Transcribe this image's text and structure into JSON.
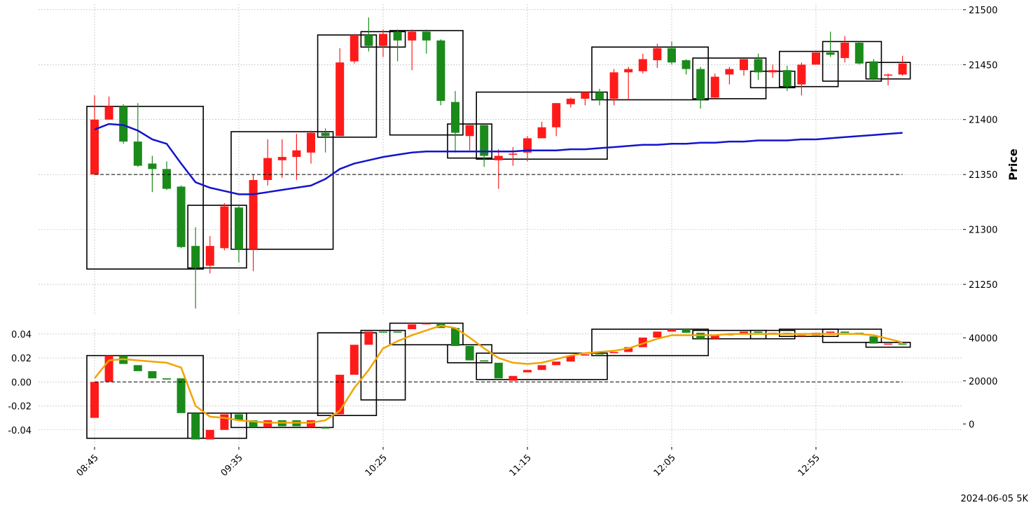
{
  "chart_data": {
    "type": "candlestick",
    "footer": "2024-06-05 5K",
    "colors": {
      "up": "#ff1a1a",
      "down": "#1a8a1a",
      "ma": "#1414cc",
      "indicator": "#f0a500",
      "box": "#000000",
      "grid": "#b0b0b0"
    },
    "x_ticks": [
      {
        "index": 0,
        "label": "08:45"
      },
      {
        "index": 10,
        "label": "09:35"
      },
      {
        "index": 20,
        "label": "10:25"
      },
      {
        "index": 30,
        "label": "11:15"
      },
      {
        "index": 40,
        "label": "12:05"
      },
      {
        "index": 50,
        "label": "12:55"
      }
    ],
    "price_panel": {
      "ylabel": "Price",
      "ylim": [
        21222,
        21505
      ],
      "yticks": [
        21250,
        21300,
        21350,
        21400,
        21450,
        21500
      ],
      "reference_level": 21350,
      "candles": [
        {
          "o": 21350,
          "h": 21422,
          "l": 21350,
          "c": 21400,
          "dir": "up"
        },
        {
          "o": 21400,
          "h": 21421,
          "l": 21400,
          "c": 21412,
          "dir": "up"
        },
        {
          "o": 21412,
          "h": 21414,
          "l": 21378,
          "c": 21380,
          "dir": "down"
        },
        {
          "o": 21380,
          "h": 21415,
          "l": 21357,
          "c": 21358,
          "dir": "down"
        },
        {
          "o": 21360,
          "h": 21367,
          "l": 21334,
          "c": 21355,
          "dir": "down"
        },
        {
          "o": 21355,
          "h": 21362,
          "l": 21336,
          "c": 21337,
          "dir": "down"
        },
        {
          "o": 21339,
          "h": 21340,
          "l": 21283,
          "c": 21284,
          "dir": "down"
        },
        {
          "o": 21285,
          "h": 21302,
          "l": 21228,
          "c": 21265,
          "dir": "down"
        },
        {
          "o": 21267,
          "h": 21294,
          "l": 21260,
          "c": 21285,
          "dir": "up"
        },
        {
          "o": 21283,
          "h": 21324,
          "l": 21281,
          "c": 21321,
          "dir": "up"
        },
        {
          "o": 21320,
          "h": 21322,
          "l": 21270,
          "c": 21282,
          "dir": "down"
        },
        {
          "o": 21282,
          "h": 21350,
          "l": 21262,
          "c": 21345,
          "dir": "up"
        },
        {
          "o": 21345,
          "h": 21382,
          "l": 21340,
          "c": 21365,
          "dir": "up"
        },
        {
          "o": 21363,
          "h": 21382,
          "l": 21347,
          "c": 21366,
          "dir": "up"
        },
        {
          "o": 21366,
          "h": 21387,
          "l": 21345,
          "c": 21372,
          "dir": "up"
        },
        {
          "o": 21370,
          "h": 21390,
          "l": 21360,
          "c": 21388,
          "dir": "up"
        },
        {
          "o": 21388,
          "h": 21392,
          "l": 21370,
          "c": 21385,
          "dir": "down"
        },
        {
          "o": 21385,
          "h": 21465,
          "l": 21385,
          "c": 21452,
          "dir": "up"
        },
        {
          "o": 21453,
          "h": 21478,
          "l": 21451,
          "c": 21477,
          "dir": "up"
        },
        {
          "o": 21477,
          "h": 21493,
          "l": 21462,
          "c": 21467,
          "dir": "down"
        },
        {
          "o": 21467,
          "h": 21482,
          "l": 21457,
          "c": 21478,
          "dir": "up"
        },
        {
          "o": 21480,
          "h": 21482,
          "l": 21453,
          "c": 21472,
          "dir": "down"
        },
        {
          "o": 21472,
          "h": 21482,
          "l": 21445,
          "c": 21480,
          "dir": "up"
        },
        {
          "o": 21480,
          "h": 21482,
          "l": 21460,
          "c": 21472,
          "dir": "down"
        },
        {
          "o": 21472,
          "h": 21473,
          "l": 21413,
          "c": 21417,
          "dir": "down"
        },
        {
          "o": 21416,
          "h": 21426,
          "l": 21370,
          "c": 21388,
          "dir": "down"
        },
        {
          "o": 21385,
          "h": 21395,
          "l": 21372,
          "c": 21395,
          "dir": "up"
        },
        {
          "o": 21395,
          "h": 21395,
          "l": 21357,
          "c": 21367,
          "dir": "down"
        },
        {
          "o": 21363,
          "h": 21373,
          "l": 21337,
          "c": 21367,
          "dir": "up"
        },
        {
          "o": 21368,
          "h": 21375,
          "l": 21358,
          "c": 21369,
          "dir": "up"
        },
        {
          "o": 21370,
          "h": 21385,
          "l": 21362,
          "c": 21383,
          "dir": "up"
        },
        {
          "o": 21383,
          "h": 21398,
          "l": 21383,
          "c": 21393,
          "dir": "up"
        },
        {
          "o": 21393,
          "h": 21415,
          "l": 21385,
          "c": 21415,
          "dir": "up"
        },
        {
          "o": 21414,
          "h": 21420,
          "l": 21411,
          "c": 21419,
          "dir": "up"
        },
        {
          "o": 21419,
          "h": 21425,
          "l": 21413,
          "c": 21425,
          "dir": "up"
        },
        {
          "o": 21425,
          "h": 21428,
          "l": 21413,
          "c": 21418,
          "dir": "down"
        },
        {
          "o": 21419,
          "h": 21446,
          "l": 21413,
          "c": 21443,
          "dir": "up"
        },
        {
          "o": 21443,
          "h": 21448,
          "l": 21418,
          "c": 21446,
          "dir": "up"
        },
        {
          "o": 21444,
          "h": 21460,
          "l": 21442,
          "c": 21455,
          "dir": "up"
        },
        {
          "o": 21454,
          "h": 21469,
          "l": 21447,
          "c": 21465,
          "dir": "up"
        },
        {
          "o": 21465,
          "h": 21471,
          "l": 21450,
          "c": 21452,
          "dir": "down"
        },
        {
          "o": 21454,
          "h": 21455,
          "l": 21441,
          "c": 21446,
          "dir": "down"
        },
        {
          "o": 21446,
          "h": 21448,
          "l": 21410,
          "c": 21418,
          "dir": "down"
        },
        {
          "o": 21420,
          "h": 21442,
          "l": 21419,
          "c": 21439,
          "dir": "up"
        },
        {
          "o": 21441,
          "h": 21448,
          "l": 21432,
          "c": 21446,
          "dir": "up"
        },
        {
          "o": 21445,
          "h": 21455,
          "l": 21440,
          "c": 21455,
          "dir": "up"
        },
        {
          "o": 21455,
          "h": 21460,
          "l": 21436,
          "c": 21443,
          "dir": "down"
        },
        {
          "o": 21443,
          "h": 21450,
          "l": 21438,
          "c": 21445,
          "dir": "up"
        },
        {
          "o": 21445,
          "h": 21449,
          "l": 21426,
          "c": 21430,
          "dir": "down"
        },
        {
          "o": 21432,
          "h": 21452,
          "l": 21422,
          "c": 21450,
          "dir": "up"
        },
        {
          "o": 21450,
          "h": 21461,
          "l": 21450,
          "c": 21461,
          "dir": "up"
        },
        {
          "o": 21461,
          "h": 21480,
          "l": 21457,
          "c": 21459,
          "dir": "down"
        },
        {
          "o": 21456,
          "h": 21476,
          "l": 21452,
          "c": 21470,
          "dir": "up"
        },
        {
          "o": 21470,
          "h": 21471,
          "l": 21450,
          "c": 21451,
          "dir": "down"
        },
        {
          "o": 21453,
          "h": 21455,
          "l": 21436,
          "c": 21437,
          "dir": "down"
        },
        {
          "o": 21440,
          "h": 21442,
          "l": 21431,
          "c": 21441,
          "dir": "up"
        },
        {
          "o": 21441,
          "h": 21458,
          "l": 21440,
          "c": 21451,
          "dir": "up"
        }
      ],
      "moving_average": [
        21391,
        21396,
        21395,
        21390,
        21382,
        21378,
        21360,
        21343,
        21338,
        21335,
        21332,
        21332,
        21334,
        21336,
        21338,
        21340,
        21346,
        21355,
        21360,
        21363,
        21366,
        21368,
        21370,
        21371,
        21371,
        21371,
        21371,
        21371,
        21371,
        21371,
        21372,
        21372,
        21372,
        21373,
        21373,
        21374,
        21375,
        21376,
        21377,
        21377,
        21378,
        21378,
        21379,
        21379,
        21380,
        21380,
        21381,
        21381,
        21381,
        21382,
        21382,
        21383,
        21384,
        21385,
        21386,
        21387,
        21388
      ],
      "boxes": [
        {
          "start": 0,
          "end": 7,
          "low": 21264,
          "high": 21412
        },
        {
          "start": 7,
          "end": 10,
          "low": 21265,
          "high": 21322
        },
        {
          "start": 10,
          "end": 16,
          "low": 21282,
          "high": 21389
        },
        {
          "start": 16,
          "end": 19,
          "low": 21384,
          "high": 21477
        },
        {
          "start": 19,
          "end": 21,
          "low": 21466,
          "high": 21480
        },
        {
          "start": 21,
          "end": 25,
          "low": 21386,
          "high": 21481
        },
        {
          "start": 25,
          "end": 27,
          "low": 21365,
          "high": 21396
        },
        {
          "start": 27,
          "end": 35,
          "low": 21364,
          "high": 21425
        },
        {
          "start": 35,
          "end": 42,
          "low": 21418,
          "high": 21466
        },
        {
          "start": 42,
          "end": 46,
          "low": 21419,
          "high": 21456
        },
        {
          "start": 46,
          "end": 48,
          "low": 21429,
          "high": 21444
        },
        {
          "start": 48,
          "end": 51,
          "low": 21430,
          "high": 21462
        },
        {
          "start": 51,
          "end": 54,
          "low": 21435,
          "high": 21471
        },
        {
          "start": 54,
          "end": 56,
          "low": 21437,
          "high": 21452
        }
      ]
    },
    "indicator_panel": {
      "left_ylim": [
        -0.053,
        0.044
      ],
      "left_yticks": [
        "0.04",
        "0.02",
        "0.00",
        "-0.02",
        "-0.04"
      ],
      "left_ytick_values": [
        0.04,
        0.02,
        0.0,
        -0.02,
        -0.04
      ],
      "right_ylim": [
        -10000,
        44000
      ],
      "right_yticks": [
        "40000",
        "20000",
        "0"
      ],
      "right_ytick_values": [
        40000,
        20000,
        0
      ],
      "reference_level": 0.0,
      "bars": [
        {
          "o": 0.0,
          "c": -0.03,
          "dir": "up"
        },
        {
          "o": 0.0,
          "c": 0.022,
          "dir": "up"
        },
        {
          "o": 0.022,
          "c": 0.015,
          "dir": "down"
        },
        {
          "o": 0.014,
          "c": 0.009,
          "dir": "down"
        },
        {
          "o": 0.009,
          "c": 0.003,
          "dir": "down"
        },
        {
          "o": 0.003,
          "c": 0.002,
          "dir": "down"
        },
        {
          "o": 0.003,
          "c": -0.026,
          "dir": "down"
        },
        {
          "o": -0.026,
          "c": -0.048,
          "dir": "down"
        },
        {
          "o": -0.048,
          "c": -0.04,
          "dir": "up"
        },
        {
          "o": -0.04,
          "c": -0.027,
          "dir": "up"
        },
        {
          "o": -0.027,
          "c": -0.032,
          "dir": "down"
        },
        {
          "o": -0.032,
          "c": -0.038,
          "dir": "down"
        },
        {
          "o": -0.038,
          "c": -0.032,
          "dir": "up"
        },
        {
          "o": -0.032,
          "c": -0.037,
          "dir": "down"
        },
        {
          "o": -0.037,
          "c": -0.032,
          "dir": "down"
        },
        {
          "o": -0.032,
          "c": -0.038,
          "dir": "up"
        },
        {
          "o": -0.038,
          "c": -0.038,
          "dir": "down"
        },
        {
          "o": -0.027,
          "c": 0.006,
          "dir": "up"
        },
        {
          "o": 0.006,
          "c": 0.031,
          "dir": "up"
        },
        {
          "o": 0.031,
          "c": 0.042,
          "dir": "up"
        },
        {
          "o": 0.042,
          "c": 0.042,
          "dir": "down"
        },
        {
          "o": 0.042,
          "c": 0.042,
          "dir": "down"
        },
        {
          "o": 0.044,
          "c": 0.048,
          "dir": "up"
        },
        {
          "o": 0.048,
          "c": 0.049,
          "dir": "up"
        },
        {
          "o": 0.049,
          "c": 0.045,
          "dir": "down"
        },
        {
          "o": 0.045,
          "c": 0.03,
          "dir": "down"
        },
        {
          "o": 0.03,
          "c": 0.018,
          "dir": "down"
        },
        {
          "o": 0.018,
          "c": 0.017,
          "dir": "down"
        },
        {
          "o": 0.016,
          "c": 0.003,
          "dir": "down"
        },
        {
          "o": 0.001,
          "c": 0.005,
          "dir": "up"
        },
        {
          "o": 0.008,
          "c": 0.01,
          "dir": "up"
        },
        {
          "o": 0.01,
          "c": 0.014,
          "dir": "up"
        },
        {
          "o": 0.014,
          "c": 0.017,
          "dir": "up"
        },
        {
          "o": 0.017,
          "c": 0.022,
          "dir": "up"
        },
        {
          "o": 0.022,
          "c": 0.023,
          "dir": "up"
        },
        {
          "o": 0.023,
          "c": 0.023,
          "dir": "down"
        },
        {
          "o": 0.024,
          "c": 0.025,
          "dir": "up"
        },
        {
          "o": 0.025,
          "c": 0.029,
          "dir": "up"
        },
        {
          "o": 0.029,
          "c": 0.037,
          "dir": "up"
        },
        {
          "o": 0.037,
          "c": 0.042,
          "dir": "up"
        },
        {
          "o": 0.042,
          "c": 0.044,
          "dir": "up"
        },
        {
          "o": 0.044,
          "c": 0.041,
          "dir": "down"
        },
        {
          "o": 0.041,
          "c": 0.036,
          "dir": "down"
        },
        {
          "o": 0.036,
          "c": 0.039,
          "dir": "up"
        },
        {
          "o": 0.039,
          "c": 0.04,
          "dir": "up"
        },
        {
          "o": 0.04,
          "c": 0.042,
          "dir": "up"
        },
        {
          "o": 0.042,
          "c": 0.041,
          "dir": "down"
        },
        {
          "o": 0.041,
          "c": 0.041,
          "dir": "up"
        },
        {
          "o": 0.041,
          "c": 0.04,
          "dir": "down"
        },
        {
          "o": 0.039,
          "c": 0.038,
          "dir": "up"
        },
        {
          "o": 0.039,
          "c": 0.041,
          "dir": "up"
        },
        {
          "o": 0.041,
          "c": 0.042,
          "dir": "up"
        },
        {
          "o": 0.042,
          "c": 0.041,
          "dir": "down"
        },
        {
          "o": 0.041,
          "c": 0.04,
          "dir": "down"
        },
        {
          "o": 0.038,
          "c": 0.032,
          "dir": "down"
        },
        {
          "o": 0.032,
          "c": 0.032,
          "dir": "up"
        },
        {
          "o": 0.032,
          "c": 0.032,
          "dir": "down"
        }
      ],
      "smooth_line": [
        0.003,
        0.018,
        0.019,
        0.018,
        0.017,
        0.016,
        0.012,
        -0.02,
        -0.029,
        -0.03,
        -0.032,
        -0.033,
        -0.034,
        -0.034,
        -0.034,
        -0.034,
        -0.032,
        -0.024,
        -0.005,
        0.01,
        0.028,
        0.034,
        0.039,
        0.043,
        0.047,
        0.045,
        0.037,
        0.028,
        0.02,
        0.016,
        0.015,
        0.016,
        0.019,
        0.022,
        0.024,
        0.025,
        0.026,
        0.028,
        0.032,
        0.036,
        0.039,
        0.039,
        0.039,
        0.039,
        0.04,
        0.04,
        0.04,
        0.04,
        0.04,
        0.04,
        0.04,
        0.04,
        0.04,
        0.04,
        0.039,
        0.036,
        0.033
      ],
      "boxes": [
        {
          "start": 0,
          "end": 7,
          "low": -0.047,
          "high": 0.022
        },
        {
          "start": 7,
          "end": 10,
          "low": -0.047,
          "high": -0.026
        },
        {
          "start": 10,
          "end": 16,
          "low": -0.038,
          "high": -0.026
        },
        {
          "start": 16,
          "end": 19,
          "low": -0.028,
          "high": 0.041
        },
        {
          "start": 19,
          "end": 21,
          "low": -0.015,
          "high": 0.043
        },
        {
          "start": 21,
          "end": 25,
          "low": 0.031,
          "high": 0.049
        },
        {
          "start": 25,
          "end": 27,
          "low": 0.016,
          "high": 0.031
        },
        {
          "start": 27,
          "end": 35,
          "low": 0.002,
          "high": 0.024
        },
        {
          "start": 35,
          "end": 42,
          "low": 0.022,
          "high": 0.044
        },
        {
          "start": 42,
          "end": 46,
          "low": 0.036,
          "high": 0.043
        },
        {
          "start": 46,
          "end": 48,
          "low": 0.036,
          "high": 0.043
        },
        {
          "start": 48,
          "end": 51,
          "low": 0.038,
          "high": 0.044
        },
        {
          "start": 51,
          "end": 54,
          "low": 0.033,
          "high": 0.044
        },
        {
          "start": 54,
          "end": 56,
          "low": 0.029,
          "high": 0.033
        }
      ]
    }
  }
}
